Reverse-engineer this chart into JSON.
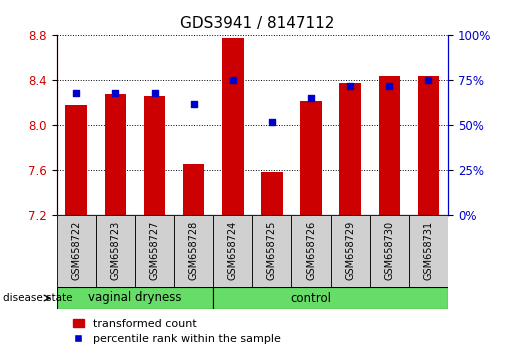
{
  "title": "GDS3941 / 8147112",
  "samples": [
    "GSM658722",
    "GSM658723",
    "GSM658727",
    "GSM658728",
    "GSM658724",
    "GSM658725",
    "GSM658726",
    "GSM658729",
    "GSM658730",
    "GSM658731"
  ],
  "bar_values": [
    8.18,
    8.28,
    8.26,
    7.65,
    8.78,
    7.58,
    8.22,
    8.38,
    8.44,
    8.44
  ],
  "percentile_values": [
    68,
    68,
    68,
    62,
    75,
    52,
    65,
    72,
    72,
    75
  ],
  "ylim_left": [
    7.2,
    8.8
  ],
  "ylim_right": [
    0,
    100
  ],
  "yticks_left": [
    7.2,
    7.6,
    8.0,
    8.4,
    8.8
  ],
  "yticks_right": [
    0,
    25,
    50,
    75,
    100
  ],
  "bar_color": "#CC0000",
  "marker_color": "#0000CC",
  "bar_bottom": 7.2,
  "grid_color": "#000000",
  "bg_color": "#FFFFFF",
  "label_bg": "#D0D0D0",
  "group_bg": "#66DD66",
  "legend_bar_label": "transformed count",
  "legend_marker_label": "percentile rank within the sample",
  "disease_state_label": "disease state",
  "title_fontsize": 11,
  "tick_fontsize": 8.5,
  "n_vaginal": 4,
  "n_control": 6,
  "group_label_vaginal": "vaginal dryness",
  "group_label_control": "control"
}
